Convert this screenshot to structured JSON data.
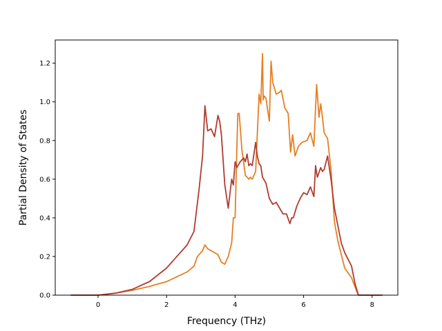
{
  "chart_data": {
    "type": "line",
    "title": "",
    "xlabel": "Frequency (THz)",
    "ylabel": "Partial Density of States",
    "xlim": [
      -1.25,
      8.75
    ],
    "ylim": [
      0.0,
      1.32
    ],
    "xticks": [
      0,
      2,
      4,
      6,
      8
    ],
    "yticks": [
      0.0,
      0.2,
      0.4,
      0.6,
      0.8,
      1.0,
      1.2
    ],
    "xtick_labels": [
      "0",
      "2",
      "4",
      "6",
      "8"
    ],
    "ytick_labels": [
      "0.0",
      "0.2",
      "0.4",
      "0.6",
      "0.8",
      "1.0",
      "1.2"
    ],
    "grid": false,
    "legend": "none",
    "series": [
      {
        "color": "#e67e22",
        "x": [
          -0.8,
          0.0,
          0.5,
          1.0,
          1.5,
          2.0,
          2.3,
          2.6,
          2.8,
          2.9,
          3.05,
          3.12,
          3.2,
          3.3,
          3.4,
          3.5,
          3.6,
          3.7,
          3.8,
          3.9,
          3.95,
          4.0,
          4.05,
          4.08,
          4.12,
          4.2,
          4.3,
          4.4,
          4.45,
          4.5,
          4.6,
          4.7,
          4.75,
          4.8,
          4.82,
          4.85,
          4.9,
          5.0,
          5.05,
          5.1,
          5.2,
          5.3,
          5.35,
          5.45,
          5.55,
          5.62,
          5.68,
          5.75,
          5.85,
          5.95,
          6.1,
          6.2,
          6.3,
          6.38,
          6.45,
          6.5,
          6.55,
          6.6,
          6.7,
          6.8,
          6.9,
          7.0,
          7.2,
          7.4,
          7.55,
          7.6,
          8.3
        ],
        "values": [
          0.0,
          0.0,
          0.01,
          0.025,
          0.045,
          0.07,
          0.095,
          0.12,
          0.15,
          0.2,
          0.23,
          0.26,
          0.24,
          0.23,
          0.22,
          0.21,
          0.17,
          0.16,
          0.2,
          0.27,
          0.4,
          0.4,
          0.75,
          0.94,
          0.94,
          0.75,
          0.62,
          0.6,
          0.61,
          0.6,
          0.64,
          1.04,
          0.99,
          1.25,
          1.01,
          1.03,
          1.02,
          0.9,
          1.21,
          1.1,
          1.04,
          1.05,
          1.06,
          0.97,
          0.94,
          0.74,
          0.83,
          0.72,
          0.77,
          0.79,
          0.8,
          0.84,
          0.77,
          1.09,
          0.92,
          0.99,
          0.92,
          0.84,
          0.81,
          0.65,
          0.38,
          0.28,
          0.14,
          0.09,
          0.02,
          0.0,
          0.0
        ]
      },
      {
        "color": "#b03a2e",
        "x": [
          -0.8,
          0.0,
          0.5,
          1.0,
          1.5,
          2.0,
          2.3,
          2.6,
          2.8,
          2.95,
          3.05,
          3.12,
          3.2,
          3.3,
          3.4,
          3.5,
          3.55,
          3.6,
          3.7,
          3.8,
          3.9,
          3.95,
          4.0,
          4.05,
          4.15,
          4.25,
          4.3,
          4.35,
          4.4,
          4.45,
          4.5,
          4.6,
          4.65,
          4.7,
          4.75,
          4.8,
          4.9,
          5.0,
          5.1,
          5.2,
          5.3,
          5.4,
          5.5,
          5.6,
          5.65,
          5.7,
          5.8,
          5.9,
          6.0,
          6.1,
          6.2,
          6.3,
          6.35,
          6.4,
          6.5,
          6.55,
          6.6,
          6.7,
          6.8,
          6.9,
          7.0,
          7.1,
          7.2,
          7.4,
          7.5,
          7.6,
          8.3
        ],
        "values": [
          0.0,
          0.0,
          0.01,
          0.03,
          0.07,
          0.14,
          0.2,
          0.26,
          0.33,
          0.55,
          0.72,
          0.98,
          0.85,
          0.86,
          0.82,
          0.93,
          0.9,
          0.83,
          0.57,
          0.45,
          0.6,
          0.57,
          0.69,
          0.66,
          0.69,
          0.71,
          0.69,
          0.73,
          0.67,
          0.68,
          0.67,
          0.79,
          0.72,
          0.68,
          0.67,
          0.61,
          0.58,
          0.5,
          0.47,
          0.48,
          0.45,
          0.42,
          0.42,
          0.37,
          0.4,
          0.4,
          0.46,
          0.5,
          0.53,
          0.52,
          0.56,
          0.51,
          0.67,
          0.61,
          0.66,
          0.64,
          0.65,
          0.72,
          0.6,
          0.45,
          0.36,
          0.27,
          0.22,
          0.15,
          0.06,
          0.0,
          0.0
        ]
      }
    ]
  }
}
